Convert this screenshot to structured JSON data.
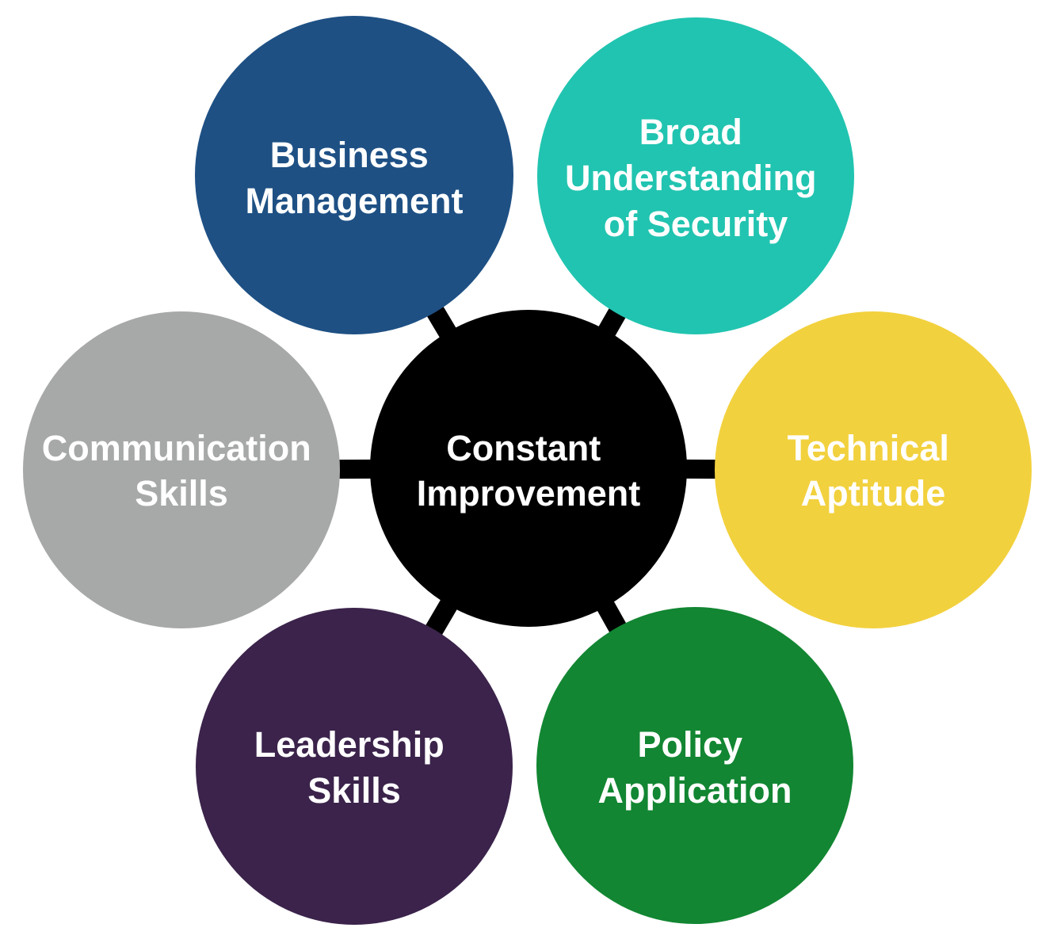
{
  "diagram": {
    "center": {
      "label_lines": [
        "Constant",
        "Improvement"
      ],
      "color": "#000000"
    },
    "nodes": [
      {
        "id": "business-management",
        "label_lines": [
          "Business",
          "Management"
        ],
        "color": "#1e5084"
      },
      {
        "id": "broad-understanding-of-security",
        "label_lines": [
          "Broad",
          "Understanding",
          "of Security"
        ],
        "color": "#21c4b0"
      },
      {
        "id": "technical-aptitude",
        "label_lines": [
          "Technical",
          "Aptitude"
        ],
        "color": "#f2d13e"
      },
      {
        "id": "policy-application",
        "label_lines": [
          "Policy",
          "Application"
        ],
        "color": "#128632"
      },
      {
        "id": "leadership-skills",
        "label_lines": [
          "Leadership",
          "Skills"
        ],
        "color": "#3b234b"
      },
      {
        "id": "communication-skills",
        "label_lines": [
          "Communication",
          "Skills"
        ],
        "color": "#a7a9a8"
      }
    ],
    "flow": [
      [
        "business-management",
        "broad-understanding-of-security"
      ],
      [
        "broad-understanding-of-security",
        "technical-aptitude"
      ],
      [
        "technical-aptitude",
        "policy-application"
      ],
      [
        "policy-application",
        "leadership-skills"
      ],
      [
        "leadership-skills",
        "communication-skills"
      ],
      [
        "communication-skills",
        "business-management"
      ]
    ],
    "connector_color": "#000000"
  }
}
